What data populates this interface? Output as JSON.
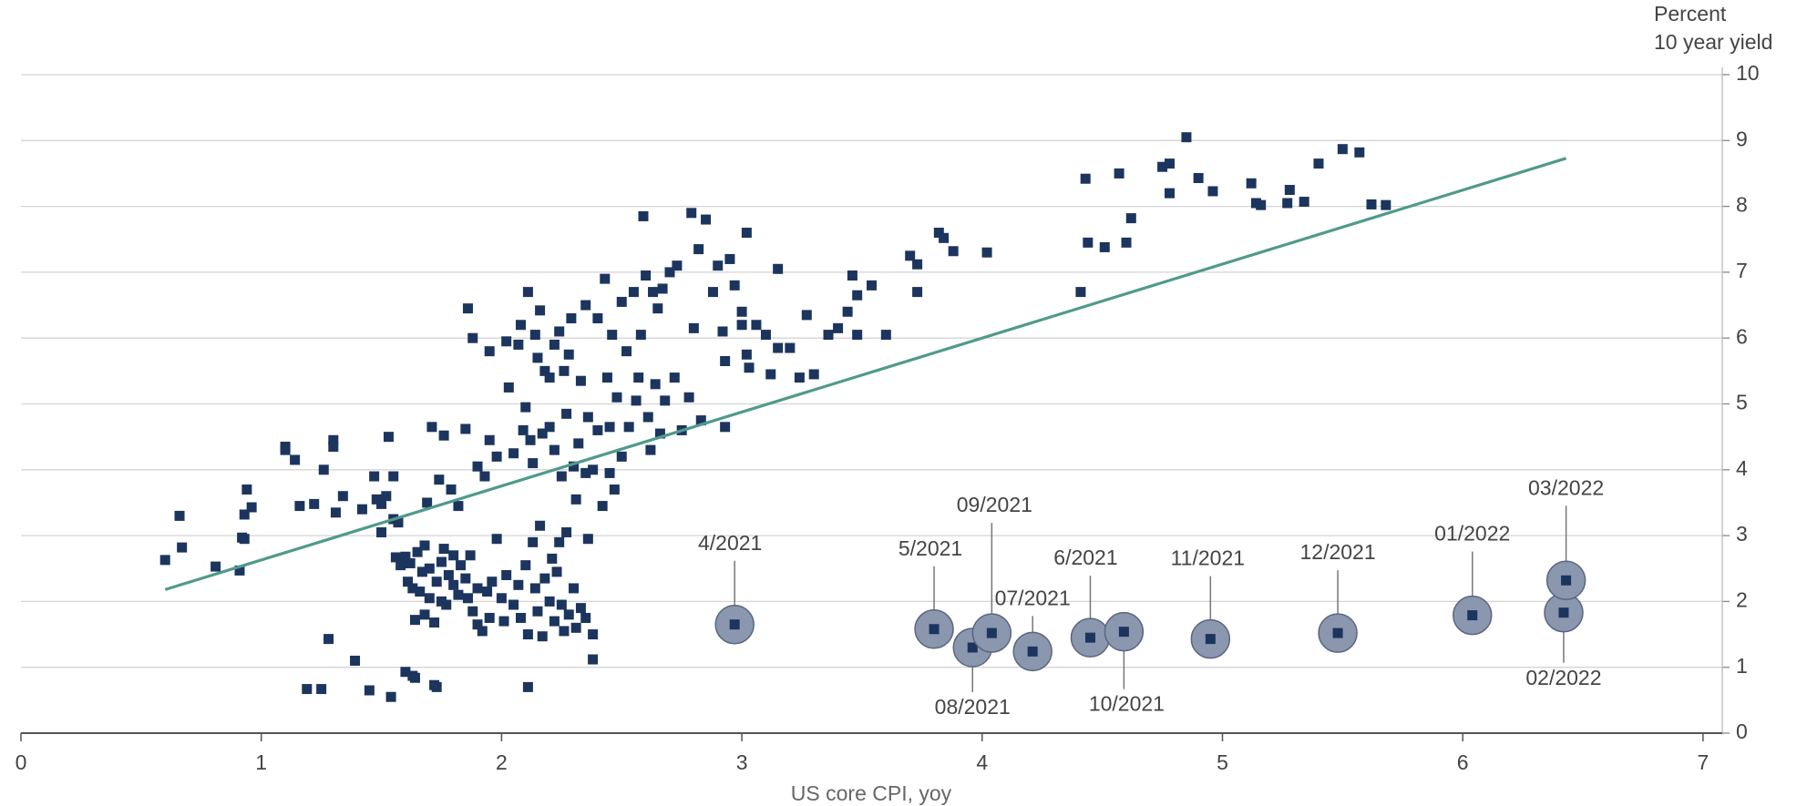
{
  "chart_data": {
    "type": "scatter",
    "x_label": "US core CPI, yoy",
    "y_label_unit": "Percent",
    "y_label": "10 year yield",
    "xlim": [
      0,
      7.08
    ],
    "ylim": [
      0,
      10
    ],
    "xticks": [
      0,
      1,
      2,
      3,
      4,
      5,
      6,
      7
    ],
    "yticks": [
      0,
      1,
      2,
      3,
      4,
      5,
      6,
      7,
      8,
      9,
      10
    ],
    "grid": true,
    "color": "#1c355e",
    "x": [
      0.6,
      0.66,
      0.67,
      0.81,
      0.91,
      0.92,
      0.93,
      0.94,
      0.96,
      0.93,
      1.1,
      1.1,
      1.14,
      1.16,
      1.22,
      1.26,
      1.3,
      1.3,
      1.31,
      1.34,
      1.42,
      1.47,
      1.48,
      1.5,
      1.52,
      1.5,
      1.53,
      1.55,
      1.55,
      1.57,
      1.28,
      1.39,
      1.19,
      1.25,
      1.45,
      1.54,
      1.6,
      1.63,
      1.64,
      1.72,
      1.73,
      1.56,
      1.6,
      1.61,
      1.62,
      1.63,
      1.64,
      1.65,
      1.66,
      1.68,
      1.68,
      1.7,
      1.7,
      1.72,
      1.73,
      1.75,
      1.75,
      1.76,
      1.77,
      1.78,
      1.8,
      1.8,
      1.82,
      1.83,
      1.85,
      1.86,
      1.87,
      1.88,
      1.9,
      1.9,
      1.92,
      1.94,
      1.95,
      1.96,
      1.98,
      2.0,
      2.01,
      2.02,
      2.05,
      2.07,
      2.08,
      2.1,
      2.11,
      2.13,
      2.14,
      2.15,
      2.16,
      2.17,
      2.18,
      2.2,
      2.21,
      2.22,
      2.23,
      2.24,
      2.25,
      2.26,
      2.27,
      2.28,
      2.3,
      2.31,
      2.33,
      2.35,
      2.36,
      2.38,
      2.38,
      2.11,
      1.58,
      1.67,
      1.69,
      1.71,
      1.74,
      1.76,
      1.79,
      1.82,
      1.85,
      1.86,
      1.88,
      1.9,
      1.93,
      1.95,
      1.95,
      1.98,
      2.02,
      2.03,
      2.05,
      2.07,
      2.08,
      2.09,
      2.1,
      2.11,
      2.12,
      2.13,
      2.14,
      2.15,
      2.16,
      2.17,
      2.18,
      2.2,
      2.2,
      2.22,
      2.22,
      2.24,
      2.25,
      2.26,
      2.27,
      2.28,
      2.29,
      2.3,
      2.31,
      2.32,
      2.33,
      2.35,
      2.36,
      2.38,
      2.4,
      2.42,
      2.43,
      2.44,
      2.45,
      2.46,
      2.47,
      2.48,
      2.5,
      2.5,
      2.52,
      2.53,
      2.55,
      2.56,
      2.57,
      2.58,
      2.59,
      2.6,
      2.61,
      2.62,
      2.63,
      2.64,
      2.65,
      2.66,
      2.67,
      2.68,
      2.7,
      2.72,
      2.73,
      2.75,
      2.78,
      2.79,
      2.8,
      2.82,
      2.83,
      2.85,
      2.88,
      2.9,
      2.92,
      2.93,
      2.93,
      2.95,
      2.97,
      3.0,
      3.0,
      3.02,
      3.02,
      3.03,
      3.06,
      3.1,
      3.12,
      3.15,
      3.15,
      3.2,
      3.24,
      3.27,
      3.3,
      3.36,
      3.4,
      3.44,
      3.46,
      3.48,
      3.48,
      3.54,
      3.6,
      3.7,
      3.73,
      3.73,
      3.82,
      3.84,
      3.88,
      4.02,
      4.41,
      4.43,
      4.44,
      4.51,
      4.57,
      4.6,
      4.62,
      4.75,
      4.78,
      4.78,
      4.85,
      4.9,
      4.96,
      5.12,
      5.14,
      5.16,
      5.27,
      5.28,
      5.34,
      5.4,
      5.5,
      5.57,
      5.62,
      5.68,
      2.4,
      2.35,
      2.45
    ],
    "values": [
      2.63,
      3.3,
      2.82,
      2.53,
      2.47,
      2.97,
      3.32,
      3.7,
      3.43,
      2.95,
      4.3,
      4.35,
      4.15,
      3.45,
      3.48,
      4.0,
      4.45,
      4.35,
      3.35,
      3.6,
      3.4,
      3.9,
      3.55,
      3.48,
      3.6,
      3.05,
      4.5,
      3.9,
      3.25,
      3.2,
      1.43,
      1.1,
      0.67,
      0.67,
      0.65,
      0.55,
      0.93,
      0.87,
      0.84,
      0.73,
      0.7,
      2.67,
      2.68,
      2.3,
      2.58,
      2.2,
      1.72,
      2.75,
      2.15,
      2.85,
      1.8,
      2.05,
      2.5,
      1.68,
      2.3,
      2.0,
      2.6,
      2.8,
      1.95,
      2.4,
      2.25,
      2.7,
      2.1,
      2.55,
      2.35,
      2.05,
      2.7,
      1.85,
      2.2,
      1.65,
      1.55,
      2.15,
      1.75,
      2.3,
      2.95,
      2.05,
      1.7,
      2.4,
      1.95,
      2.25,
      1.75,
      2.55,
      1.5,
      2.9,
      2.2,
      1.85,
      3.15,
      1.47,
      2.35,
      2.0,
      2.65,
      1.7,
      2.45,
      2.9,
      1.95,
      1.55,
      3.05,
      1.8,
      2.2,
      1.6,
      1.9,
      1.75,
      2.95,
      1.5,
      1.12,
      0.7,
      2.55,
      2.45,
      3.5,
      4.65,
      3.85,
      4.52,
      3.7,
      3.45,
      4.62,
      6.45,
      6.0,
      4.05,
      3.9,
      4.45,
      5.8,
      4.2,
      5.95,
      5.25,
      4.25,
      5.9,
      6.2,
      4.6,
      4.95,
      6.7,
      4.45,
      4.1,
      6.05,
      5.7,
      6.42,
      4.55,
      5.5,
      4.65,
      5.4,
      5.9,
      4.3,
      6.1,
      3.9,
      5.5,
      4.85,
      5.75,
      6.3,
      4.05,
      3.55,
      4.4,
      5.35,
      6.5,
      4.8,
      4.0,
      6.3,
      3.45,
      6.9,
      5.4,
      4.65,
      6.05,
      3.7,
      5.1,
      6.55,
      4.2,
      5.8,
      4.65,
      6.7,
      5.05,
      5.4,
      6.05,
      7.85,
      6.95,
      4.8,
      4.3,
      6.7,
      5.3,
      6.45,
      4.55,
      6.75,
      5.05,
      7.0,
      5.4,
      7.1,
      4.6,
      5.1,
      7.9,
      6.15,
      7.35,
      4.75,
      7.8,
      6.7,
      7.1,
      6.1,
      5.65,
      4.65,
      7.2,
      6.8,
      6.4,
      6.2,
      5.75,
      7.6,
      5.55,
      6.2,
      6.05,
      5.45,
      7.05,
      5.85,
      5.85,
      5.4,
      6.35,
      5.45,
      6.05,
      6.15,
      6.4,
      6.95,
      6.05,
      6.65,
      6.8,
      6.05,
      7.25,
      6.7,
      7.12,
      7.6,
      7.52,
      7.32,
      7.3,
      6.7,
      8.42,
      7.45,
      7.38,
      8.5,
      7.45,
      7.82,
      8.6,
      8.65,
      8.2,
      9.05,
      8.43,
      8.23,
      8.35,
      8.05,
      8.02,
      8.05,
      8.25,
      8.07,
      8.65,
      8.87,
      8.82,
      8.03,
      8.02,
      4.6,
      3.95,
      3.95
    ],
    "highlighted": {
      "labels": [
        "4/2021",
        "5/2021",
        "08/2021",
        "09/2021",
        "07/2021",
        "6/2021",
        "10/2021",
        "11/2021",
        "12/2021",
        "01/2022",
        "02/2022",
        "03/2022"
      ],
      "x": [
        2.97,
        3.8,
        3.96,
        4.04,
        4.21,
        4.45,
        4.59,
        4.95,
        5.48,
        6.04,
        6.42,
        6.43
      ],
      "values": [
        1.65,
        1.58,
        1.3,
        1.52,
        1.24,
        1.45,
        1.54,
        1.43,
        1.52,
        1.79,
        1.83,
        2.32
      ],
      "color": "#8a97ae"
    },
    "trend": {
      "x": [
        0.6,
        6.43
      ],
      "values": [
        2.18,
        8.73
      ],
      "color": "#4f9a8b"
    }
  }
}
